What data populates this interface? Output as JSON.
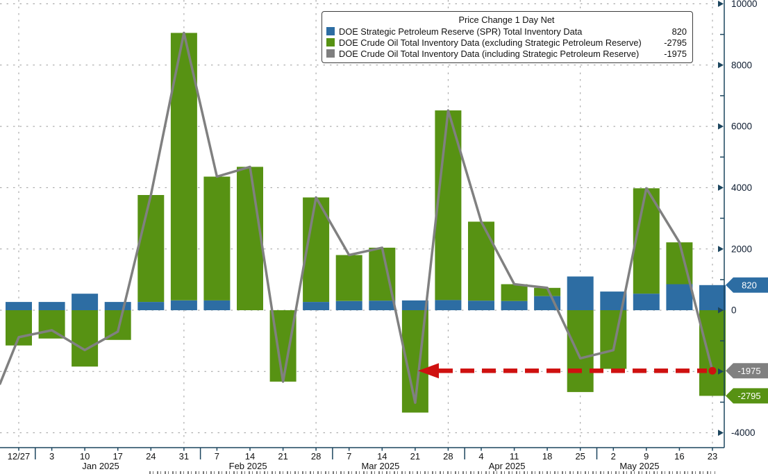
{
  "legend": {
    "title": "Price Change 1 Day Net",
    "items": [
      {
        "label": "DOE Strategic Petroleum Reserve (SPR) Total Inventory Data",
        "value": "820",
        "color": "#2d6da3"
      },
      {
        "label": "DOE Crude Oil Total Inventory Data (excluding Strategic Petroleum Reserve)",
        "value": "-2795",
        "color": "#579213"
      },
      {
        "label": "DOE Crude Oil Total Inventory Data (including Strategic Petroleum Reserve)",
        "value": "-1975",
        "color": "#7f7f7f"
      }
    ]
  },
  "chart_data": {
    "type": "bar",
    "subtype": "stacked-bars-with-total-line",
    "title": "Price Change 1 Day Net",
    "categories": [
      "12/27",
      "3",
      "10",
      "17",
      "24",
      "31",
      "7",
      "14",
      "21",
      "28",
      "7",
      "14",
      "21",
      "28",
      "4",
      "11",
      "18",
      "25",
      "2",
      "9",
      "16",
      "23"
    ],
    "series": [
      {
        "name": "DOE Strategic Petroleum Reserve (SPR) Total Inventory Data",
        "type": "bar",
        "color": "#2d6da3",
        "values": [
          270,
          270,
          540,
          270,
          270,
          320,
          320,
          0,
          0,
          270,
          300,
          310,
          320,
          330,
          310,
          300,
          460,
          1100,
          610,
          540,
          850,
          820
        ]
      },
      {
        "name": "DOE Crude Oil Total Inventory Data (excluding Strategic Petroleum Reserve)",
        "type": "bar",
        "color": "#579213",
        "values": [
          -1150,
          -925,
          -1840,
          -970,
          3490,
          8730,
          4040,
          4680,
          -2330,
          3410,
          1500,
          1730,
          -3340,
          6190,
          2580,
          550,
          270,
          -2670,
          -1915,
          3440,
          1365,
          -2795
        ]
      },
      {
        "name": "DOE Crude Oil Total Inventory Data (including Strategic Petroleum Reserve)",
        "type": "line",
        "color": "#808080",
        "values": [
          -880,
          -655,
          -1300,
          -700,
          3760,
          9050,
          4360,
          4680,
          -2330,
          3680,
          1800,
          2040,
          -3020,
          6520,
          2890,
          850,
          730,
          -1570,
          -1305,
          3980,
          2215,
          -1975
        ]
      }
    ],
    "line_lead_in_value": -2400,
    "ylim": [
      -4000,
      10000
    ],
    "y_major_tick_step": 2000,
    "y_minor_tick_step": 1000,
    "y_axis_labels": [
      "10000",
      "8000",
      "6000",
      "4000",
      "2000",
      "0",
      "-4000"
    ],
    "y_axis_label_values": [
      10000,
      8000,
      6000,
      4000,
      2000,
      0,
      -4000
    ],
    "grid": true,
    "legend_position": "top-right",
    "month_labels": [
      {
        "text": "Jan 2025",
        "center_index": 2.48
      },
      {
        "text": "Feb 2025",
        "center_index": 6.94
      },
      {
        "text": "Mar 2025",
        "center_index": 10.95
      },
      {
        "text": "Apr 2025",
        "center_index": 14.78
      },
      {
        "text": "May 2025",
        "center_index": 18.79
      }
    ],
    "month_separator_indices": [
      0.5,
      5.5,
      9.5,
      13.5,
      17.5
    ],
    "vertical_gridline_indices": [
      0,
      5,
      9,
      13,
      17,
      21
    ]
  },
  "y_axis_badges": [
    {
      "text": "820",
      "value": 820,
      "bg": "#2d6da3"
    },
    {
      "text": "-1975",
      "value": -1975,
      "bg": "#808080"
    },
    {
      "text": "-2795",
      "value": -2795,
      "bg": "#579213"
    }
  ],
  "annotation_arrow": {
    "value": -1975,
    "head_x": 602,
    "head_len": 30,
    "color": "#cf1110",
    "dash": "20 11"
  }
}
